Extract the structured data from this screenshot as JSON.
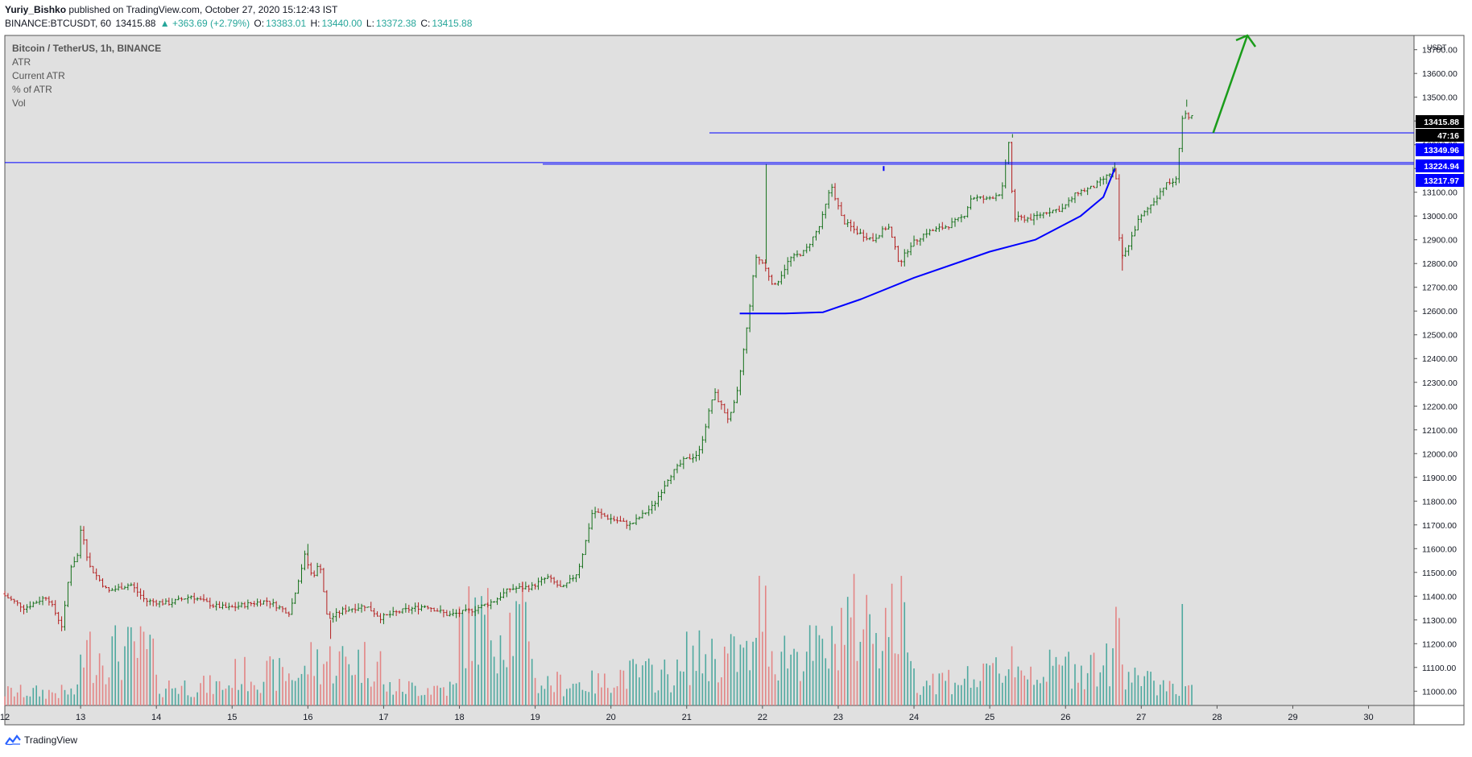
{
  "header": {
    "author": "Yuriy_Bishko",
    "published": "published on TradingView.com, October 27, 2020 15:12:43 IST",
    "symbol": "BINANCE:BTCUSDT, 60",
    "last": "13415.88",
    "change": "▲ +363.69 (+2.79%)",
    "o_label": "O:",
    "o_val": "13383.01",
    "h_label": "H:",
    "h_val": "13440.00",
    "l_label": "L:",
    "l_val": "13372.38",
    "c_label": "C:",
    "c_val": "13415.88"
  },
  "chart_data": {
    "type": "candlestick",
    "legend": [
      "Bitcoin / TetherUS, 1h, BINANCE",
      "ATR",
      "Current ATR",
      "% of ATR",
      "Vol"
    ],
    "currency": "USDT",
    "x_ticks": [
      "12",
      "13",
      "14",
      "15",
      "16",
      "17",
      "18",
      "19",
      "20",
      "21",
      "22",
      "23",
      "24",
      "25",
      "26",
      "27",
      "28",
      "29",
      "30"
    ],
    "y_ticks": [
      11000,
      11100,
      11200,
      11300,
      11400,
      11500,
      11600,
      11700,
      11800,
      11900,
      12000,
      12100,
      12200,
      12300,
      12400,
      12500,
      12600,
      12700,
      12800,
      12900,
      13000,
      13100,
      13200,
      13300,
      13400,
      13500,
      13600,
      13700
    ],
    "ylim": [
      10940,
      13760
    ],
    "xlim_days": [
      12,
      30.6
    ],
    "price_path": [
      [
        12.0,
        11410
      ],
      [
        12.3,
        11350
      ],
      [
        12.6,
        11400
      ],
      [
        12.8,
        11270
      ],
      [
        12.9,
        11520
      ],
      [
        13.0,
        11570
      ],
      [
        13.05,
        11700
      ],
      [
        13.15,
        11530
      ],
      [
        13.4,
        11420
      ],
      [
        13.7,
        11450
      ],
      [
        13.9,
        11380
      ],
      [
        14.2,
        11370
      ],
      [
        14.5,
        11400
      ],
      [
        14.8,
        11360
      ],
      [
        15.0,
        11350
      ],
      [
        15.3,
        11370
      ],
      [
        15.5,
        11380
      ],
      [
        15.8,
        11330
      ],
      [
        15.9,
        11450
      ],
      [
        16.0,
        11570
      ],
      [
        16.1,
        11480
      ],
      [
        16.2,
        11540
      ],
      [
        16.3,
        11300
      ],
      [
        16.5,
        11340
      ],
      [
        16.8,
        11360
      ],
      [
        17.0,
        11310
      ],
      [
        17.3,
        11340
      ],
      [
        17.6,
        11360
      ],
      [
        17.9,
        11320
      ],
      [
        18.2,
        11340
      ],
      [
        18.5,
        11380
      ],
      [
        18.7,
        11430
      ],
      [
        19.0,
        11440
      ],
      [
        19.2,
        11480
      ],
      [
        19.4,
        11430
      ],
      [
        19.6,
        11500
      ],
      [
        19.7,
        11620
      ],
      [
        19.8,
        11760
      ],
      [
        20.0,
        11730
      ],
      [
        20.3,
        11700
      ],
      [
        20.6,
        11780
      ],
      [
        20.8,
        11900
      ],
      [
        21.0,
        11970
      ],
      [
        21.2,
        12000
      ],
      [
        21.3,
        12130
      ],
      [
        21.4,
        12260
      ],
      [
        21.6,
        12140
      ],
      [
        21.7,
        12240
      ],
      [
        21.85,
        12560
      ],
      [
        21.95,
        12830
      ],
      [
        22.05,
        12800
      ],
      [
        22.2,
        12700
      ],
      [
        22.4,
        12820
      ],
      [
        22.6,
        12850
      ],
      [
        22.8,
        12960
      ],
      [
        22.95,
        13130
      ],
      [
        23.1,
        12980
      ],
      [
        23.3,
        12930
      ],
      [
        23.5,
        12900
      ],
      [
        23.7,
        12960
      ],
      [
        23.85,
        12800
      ],
      [
        24.0,
        12880
      ],
      [
        24.2,
        12930
      ],
      [
        24.5,
        12960
      ],
      [
        24.7,
        13000
      ],
      [
        24.8,
        13080
      ],
      [
        25.0,
        13070
      ],
      [
        25.2,
        13100
      ],
      [
        25.3,
        13330
      ],
      [
        25.35,
        12990
      ],
      [
        25.6,
        12990
      ],
      [
        25.8,
        13020
      ],
      [
        26.0,
        13030
      ],
      [
        26.2,
        13100
      ],
      [
        26.4,
        13120
      ],
      [
        26.6,
        13170
      ],
      [
        26.7,
        13200
      ],
      [
        26.75,
        12900
      ],
      [
        26.8,
        12820
      ],
      [
        27.0,
        12980
      ],
      [
        27.2,
        13060
      ],
      [
        27.35,
        13130
      ],
      [
        27.5,
        13150
      ],
      [
        27.55,
        13320
      ],
      [
        27.6,
        13460
      ],
      [
        27.65,
        13400
      ],
      [
        27.7,
        13415.88
      ]
    ],
    "markers": [
      [
        13.05,
        11700
      ],
      [
        16.0,
        11620
      ],
      [
        16.3,
        11220
      ],
      [
        22.05,
        13220
      ],
      [
        25.3,
        13345
      ],
      [
        26.65,
        13225
      ],
      [
        26.75,
        12770
      ],
      [
        27.6,
        13490
      ]
    ],
    "volume": {
      "levels": [
        0.15,
        0.6,
        0.22,
        0.35,
        0.5,
        0.2,
        0.9,
        0.25,
        0.35,
        0.55,
        0.6,
        0.95,
        0.3,
        0.4,
        0.45,
        0.25,
        0.2,
        0.5
      ],
      "spikes": [
        [
          21.95,
          0.92
        ],
        [
          22.05,
          0.85
        ],
        [
          25.3,
          0.42
        ],
        [
          26.65,
          0.7
        ],
        [
          26.7,
          0.62
        ],
        [
          27.55,
          0.72
        ]
      ]
    },
    "horizontal_lines": [
      {
        "value": 13349.96,
        "from_day": 21.3,
        "color": "#0000ff"
      },
      {
        "value": 13224.94,
        "from_day": 12.0,
        "color": "#0000ff"
      },
      {
        "value": 13217.97,
        "from_day": 19.1,
        "color": "#0000ff"
      }
    ],
    "curve": [
      [
        21.7,
        12590
      ],
      [
        22.3,
        12590
      ],
      [
        22.8,
        12595
      ],
      [
        23.3,
        12650
      ],
      [
        24.0,
        12740
      ],
      [
        25.0,
        12850
      ],
      [
        25.6,
        12900
      ],
      [
        26.2,
        13000
      ],
      [
        26.5,
        13080
      ],
      [
        26.65,
        13200
      ]
    ],
    "arrow": {
      "from": [
        27.95,
        13350
      ],
      "to": [
        28.4,
        13760
      ],
      "color": "#1a9c1a"
    },
    "price_labels": [
      {
        "text": "13415.88",
        "bg": "#000000"
      },
      {
        "text": "47:16",
        "bg": "#000000"
      },
      {
        "text": "13349.96",
        "bg": "#0000ff"
      },
      {
        "text": "13224.94",
        "bg": "#0000ff"
      },
      {
        "text": "13217.97",
        "bg": "#0000ff"
      }
    ],
    "small_tick": [
      23.6,
      13200
    ],
    "colors": {
      "up": "#15701a",
      "down": "#b32020",
      "vol_up": "#4fa99f",
      "vol_down": "#e38585",
      "bg": "#e0e0e0",
      "line": "#0000ff"
    }
  },
  "footer": {
    "brand": "TradingView"
  }
}
